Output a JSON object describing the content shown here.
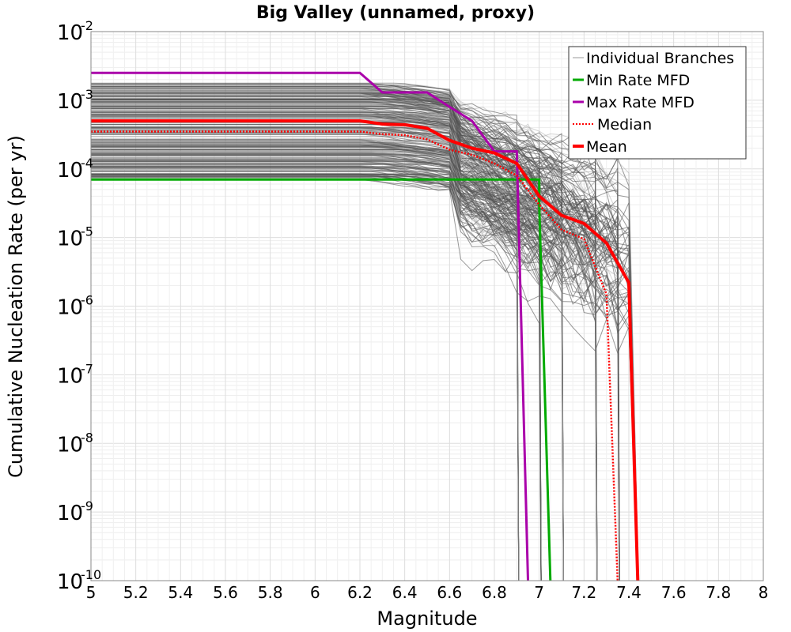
{
  "chart_data": {
    "type": "line",
    "title": "Big Valley (unnamed, proxy)",
    "xlabel": "Magnitude",
    "ylabel": "Cumulative Nucleation Rate (per yr)",
    "x_scale": "linear",
    "y_scale": "log",
    "xlim": [
      5,
      8
    ],
    "ylim": [
      1e-10,
      0.01
    ],
    "x_ticks": [
      5,
      5.2,
      5.4,
      5.6,
      5.8,
      6,
      6.2,
      6.4,
      6.6,
      6.8,
      7,
      7.2,
      7.4,
      7.6,
      7.8,
      8
    ],
    "x_tick_labels": [
      "5",
      "5.2",
      "5.4",
      "5.6",
      "5.8",
      "6",
      "6.2",
      "6.4",
      "6.6",
      "6.8",
      "7",
      "7.2",
      "7.4",
      "7.6",
      "7.8",
      "8"
    ],
    "y_ticks": [
      {
        "base": "10",
        "exp": "-2",
        "value": 0.01
      },
      {
        "base": "10",
        "exp": "-3",
        "value": 0.001
      },
      {
        "base": "10",
        "exp": "-4",
        "value": 0.0001
      },
      {
        "base": "10",
        "exp": "-5",
        "value": 1e-05
      },
      {
        "base": "10",
        "exp": "-6",
        "value": 1e-06
      },
      {
        "base": "10",
        "exp": "-7",
        "value": 1e-07
      },
      {
        "base": "10",
        "exp": "-8",
        "value": 1e-08
      },
      {
        "base": "10",
        "exp": "-9",
        "value": 1e-09
      },
      {
        "base": "10",
        "exp": "-10",
        "value": 1e-10
      }
    ],
    "grid": true,
    "legend_position": "top-right",
    "series": [
      {
        "name": "Individual Branches",
        "color": "#555555",
        "envelope": {
          "description_values": "many branch curves spanning the band shown",
          "upper": [
            [
              5,
              0.0018
            ],
            [
              6.2,
              0.0018
            ],
            [
              6.4,
              0.0017
            ],
            [
              6.6,
              0.0011
            ],
            [
              6.8,
              0.0006
            ],
            [
              7.0,
              0.00012
            ],
            [
              7.2,
              9e-05
            ],
            [
              7.4,
              4e-05
            ]
          ],
          "lower": [
            [
              5,
              7e-05
            ],
            [
              6.2,
              7e-05
            ],
            [
              6.4,
              6e-05
            ],
            [
              6.6,
              2e-05
            ],
            [
              6.8,
              3e-06
            ],
            [
              6.9,
              1e-06
            ]
          ]
        }
      },
      {
        "name": "Min Rate MFD",
        "color": "#00aa00",
        "points": [
          [
            5.0,
            7e-05
          ],
          [
            6.9,
            7e-05
          ],
          [
            7.0,
            7e-05
          ],
          [
            7.0,
            3e-05
          ],
          [
            7.05,
            1e-10
          ]
        ]
      },
      {
        "name": "Max Rate MFD",
        "color": "#aa00aa",
        "points": [
          [
            5.0,
            0.0025
          ],
          [
            6.2,
            0.0025
          ],
          [
            6.3,
            0.0013
          ],
          [
            6.5,
            0.0013
          ],
          [
            6.6,
            0.0008
          ],
          [
            6.7,
            0.0005
          ],
          [
            6.8,
            0.00018
          ],
          [
            6.9,
            0.00018
          ],
          [
            6.95,
            1e-10
          ]
        ]
      },
      {
        "name": "Median",
        "color": "#ff0000",
        "style": "dotted",
        "points": [
          [
            5.0,
            0.00035
          ],
          [
            6.2,
            0.00035
          ],
          [
            6.3,
            0.00032
          ],
          [
            6.4,
            0.00031
          ],
          [
            6.5,
            0.00027
          ],
          [
            6.6,
            0.00019
          ],
          [
            6.7,
            0.00016
          ],
          [
            6.8,
            0.00012
          ],
          [
            6.9,
            8e-05
          ],
          [
            7.0,
            3e-05
          ],
          [
            7.1,
            1.3e-05
          ],
          [
            7.2,
            9.5e-06
          ],
          [
            7.3,
            1.5e-06
          ],
          [
            7.35,
            1e-10
          ]
        ]
      },
      {
        "name": "Mean",
        "color": "#ff0000",
        "style": "solid-thick",
        "points": [
          [
            5.0,
            0.0005
          ],
          [
            6.2,
            0.0005
          ],
          [
            6.3,
            0.00045
          ],
          [
            6.4,
            0.00044
          ],
          [
            6.5,
            0.00039
          ],
          [
            6.6,
            0.00026
          ],
          [
            6.7,
            0.0002
          ],
          [
            6.8,
            0.00017
          ],
          [
            6.9,
            0.00012
          ],
          [
            7.0,
            4e-05
          ],
          [
            7.1,
            2.1e-05
          ],
          [
            7.2,
            1.6e-05
          ],
          [
            7.3,
            8.3e-06
          ],
          [
            7.4,
            2.2e-06
          ],
          [
            7.44,
            1e-10
          ]
        ]
      }
    ]
  }
}
